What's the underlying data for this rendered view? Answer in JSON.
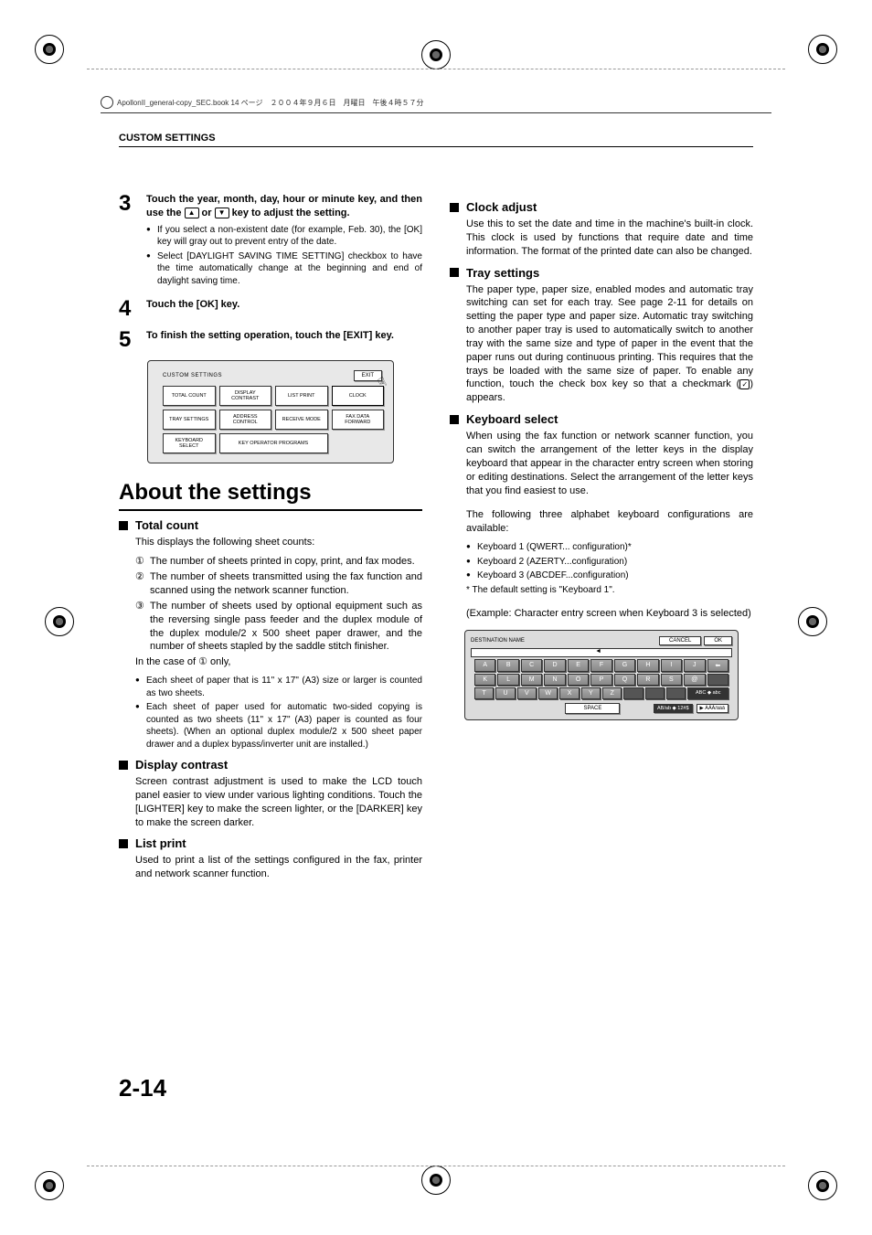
{
  "header": {
    "file_info": "ApollonII_general-copy_SEC.book  14 ページ　２００４年９月６日　月曜日　午後４時５７分"
  },
  "section_title": "CUSTOM SETTINGS",
  "left": {
    "step3": {
      "num": "3",
      "title": "Touch the year, month, day, hour or minute key, and then use the ▲ or ▼ key to adjust the setting.",
      "b1": "If you select a non-existent date (for example, Feb. 30), the [OK] key will gray out to prevent entry of the date.",
      "b2": "Select [DAYLIGHT SAVING TIME SETTING] checkbox to have the time automatically change at the beginning and end of daylight saving time."
    },
    "step4": {
      "num": "4",
      "title": "Touch the [OK] key."
    },
    "step5": {
      "num": "5",
      "title": "To finish the setting operation, touch the [EXIT] key."
    },
    "panel": {
      "title": "CUSTOM SETTINGS",
      "exit": "EXIT",
      "b_total": "TOTAL COUNT",
      "b_display": "DISPLAY CONTRAST",
      "b_list": "LIST PRINT",
      "b_clock": "CLOCK",
      "b_tray": "TRAY SETTINGS",
      "b_address": "ADDRESS CONTROL",
      "b_receive": "RECEIVE MODE",
      "b_fax": "FAX DATA FORWARD",
      "b_keyboard": "KEYBOARD SELECT",
      "b_keyop": "KEY OPERATOR PROGRAMS"
    },
    "heading": "About the settings",
    "total_count": {
      "h": "Total count",
      "intro": "This displays the following sheet counts:",
      "n1": "The number of sheets printed in copy, print, and fax modes.",
      "n2": "The number of sheets transmitted using the fax function and scanned using the network scanner function.",
      "n3": "The number of sheets used by optional equipment such as the reversing single pass feeder and the duplex module of the duplex module/2 x 500 sheet paper drawer, and the number of sheets stapled by the saddle stitch finisher.",
      "case": "In the case of  ①  only,",
      "sb1": "Each sheet of paper that is 11\" x 17\" (A3) size or larger is counted as two sheets.",
      "sb2": "Each sheet of paper used for automatic two-sided copying is counted as two sheets (11\" x 17\" (A3) paper is counted as four sheets). (When an optional duplex module/2 x 500 sheet paper drawer and a duplex bypass/inverter unit are installed.)"
    },
    "display_contrast": {
      "h": "Display contrast",
      "body": "Screen contrast adjustment is used to make the LCD touch panel easier to view under various lighting conditions. Touch the [LIGHTER] key to make the screen lighter, or the [DARKER] key to make the screen darker."
    },
    "list_print": {
      "h": "List print",
      "body": "Used to print a list of the settings configured in the fax, printer and network scanner function."
    }
  },
  "right": {
    "clock": {
      "h": "Clock adjust",
      "body": "Use this to set the date and time in the machine's built-in clock. This clock is used by functions that require date and time information. The format of the printed date can also be changed."
    },
    "tray": {
      "h": "Tray settings",
      "body": "The paper type, paper size, enabled modes and automatic tray switching can set for each tray. See page 2-11 for details on setting the paper type and paper size. Automatic tray switching to another paper tray is used to automatically switch to another tray with the same size and type of paper in the event that the paper runs out during continuous printing. This requires that the trays be loaded with the same size of paper. To enable any function, touch the check box key so that a checkmark (☑) appears."
    },
    "keyboard": {
      "h": "Keyboard select",
      "body1": "When using the fax function or network scanner function, you can switch the arrangement of the letter keys in the display keyboard that appear in the character entry screen when storing or editing destinations. Select the arrangement of the letter keys that you find easiest to use.",
      "body2": "The following three alphabet keyboard configurations are available:",
      "kb1": "Keyboard 1 (QWERT... configuration)*",
      "kb2": "Keyboard  2 (AZERTY...configuration)",
      "kb3": "Keyboard  3 (ABCDEF...configuration)",
      "note": "*  The default setting is \"Keyboard  1\".",
      "example": "(Example: Character entry screen when Keyboard 3 is selected)"
    },
    "kbd_panel": {
      "title": "DESTINATION NAME",
      "cancel": "CANCEL",
      "ok": "OK",
      "row1": [
        "A",
        "B",
        "C",
        "D",
        "E",
        "F",
        "G",
        "H",
        "I",
        "J",
        "⬅"
      ],
      "row2": [
        "K",
        "L",
        "M",
        "N",
        "O",
        "P",
        "Q",
        "R",
        "S",
        "@",
        ""
      ],
      "row3": [
        "T",
        "U",
        "V",
        "W",
        "X",
        "Y",
        "Z",
        "",
        "",
        "",
        ""
      ],
      "space": "SPACE",
      "mode1": "AB/ab ◆ 12#$",
      "mode2": "▶ ÀÄÂ/àäâ",
      "abc_label": "ABC ◆ abc"
    }
  },
  "page_number": "2-14"
}
